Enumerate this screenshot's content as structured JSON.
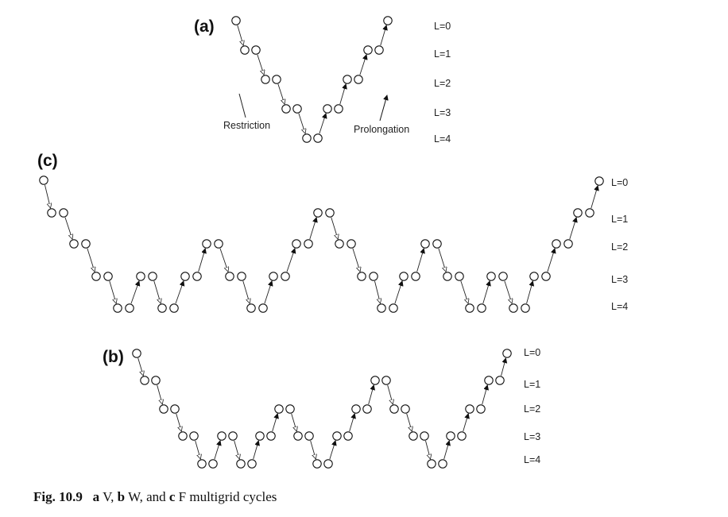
{
  "panels": {
    "a": {
      "label": "(a)",
      "cycle": "V",
      "levels": [
        "L=0",
        "L=1",
        "L=2",
        "L=3",
        "L=4"
      ]
    },
    "b": {
      "label": "(b)",
      "cycle": "W",
      "levels": [
        "L=0",
        "L=1",
        "L=2",
        "L=3",
        "L=4"
      ]
    },
    "c": {
      "label": "(c)",
      "cycle": "F",
      "levels": [
        "L=0",
        "L=1",
        "L=2",
        "L=3",
        "L=4"
      ]
    }
  },
  "annotations": {
    "restriction": "Restriction",
    "prolongation": "Prolongation"
  },
  "caption": {
    "fig": "Fig. 10.9",
    "items": [
      {
        "letter": "a",
        "name": "V,"
      },
      {
        "letter": "b",
        "name": "W, and"
      },
      {
        "letter": "c",
        "name": "F multigrid cycles"
      }
    ]
  }
}
